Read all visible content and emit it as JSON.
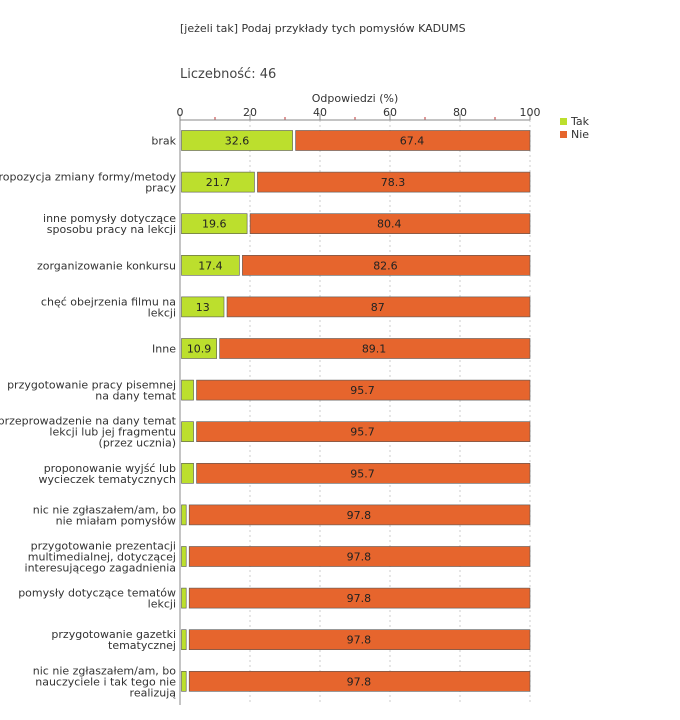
{
  "header": {
    "title": "[jeżeli tak] Podaj przykłady tych pomysłów KADUMS",
    "count_label": "Liczebność:",
    "count_value": "46"
  },
  "colors": {
    "tak": "#bcdf2d",
    "nie": "#e6652d",
    "grid": "#cccccc",
    "border": "#555555"
  },
  "chart_data": {
    "type": "bar",
    "orientation": "horizontal",
    "stacked": true,
    "title": "[jeżeli tak] Podaj przykłady tych pomysłów KADUMS",
    "xlabel": "Odpowiedzi (%)",
    "xlim": [
      0,
      100
    ],
    "xticks": [
      0,
      20,
      40,
      60,
      80,
      100
    ],
    "legend_position": "top-right",
    "categories": [
      [
        "brak"
      ],
      [
        "Propozycja zmiany formy/metody",
        "pracy"
      ],
      [
        "inne pomysły dotyczące",
        "sposobu pracy na lekcji"
      ],
      [
        "zorganizowanie konkursu"
      ],
      [
        "chęć obejrzenia filmu na",
        "lekcji"
      ],
      [
        "Inne"
      ],
      [
        "przygotowanie pracy pisemnej",
        "na dany temat"
      ],
      [
        "przeprowadzenie na dany temat",
        "lekcji lub jej fragmentu",
        "(przez ucznia)"
      ],
      [
        "proponowanie wyjść lub",
        "wycieczek tematycznych"
      ],
      [
        "nic nie zgłaszałem/am, bo",
        "nie miałam pomysłów"
      ],
      [
        "przygotowanie prezentacji",
        "multimedialnej, dotyczącej",
        "interesującego zagadnienia"
      ],
      [
        "pomysły dotyczące tematów",
        "lekcji"
      ],
      [
        "przygotowanie gazetki",
        "tematycznej"
      ],
      [
        "nic nie zgłaszałem/am,  bo",
        "nauczyciele i tak tego nie",
        "realizują"
      ]
    ],
    "series": [
      {
        "name": "Tak",
        "values": [
          32.6,
          21.7,
          19.6,
          17.4,
          13,
          10.9,
          4.3,
          4.3,
          4.3,
          2.2,
          2.2,
          2.2,
          2.2,
          2.2
        ],
        "labels": [
          "32.6",
          "21.7",
          "19.6",
          "17.4",
          "13",
          "10.9",
          "",
          "",
          "",
          "",
          "",
          "",
          "",
          ""
        ]
      },
      {
        "name": "Nie",
        "values": [
          67.4,
          78.3,
          80.4,
          82.6,
          87,
          89.1,
          95.7,
          95.7,
          95.7,
          97.8,
          97.8,
          97.8,
          97.8,
          97.8
        ],
        "labels": [
          "67.4",
          "78.3",
          "80.4",
          "82.6",
          "87",
          "89.1",
          "95.7",
          "95.7",
          "95.7",
          "97.8",
          "97.8",
          "97.8",
          "97.8",
          "97.8"
        ]
      }
    ]
  }
}
